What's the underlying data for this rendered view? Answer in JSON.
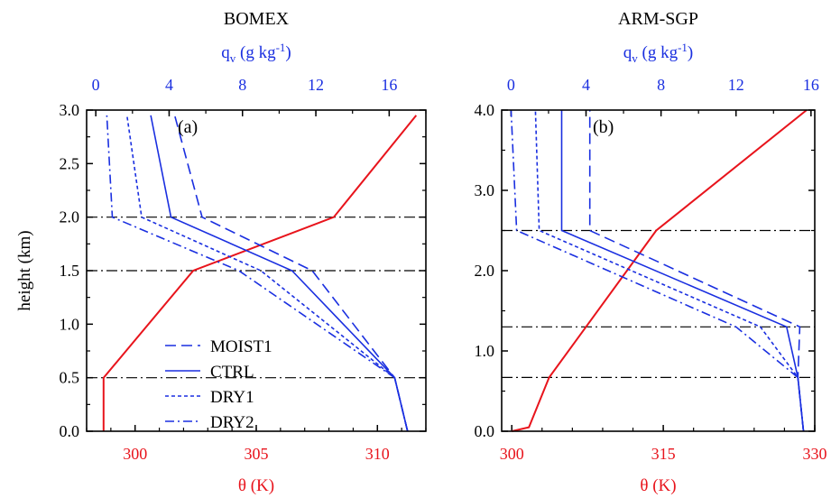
{
  "colors": {
    "theta": "#e8141c",
    "qv": "#1a2fe0",
    "axis": "#000000",
    "ref": "#000000"
  },
  "y_axis_label": "height (km)",
  "legend": [
    "MOIST1",
    "CTRL",
    "DRY1",
    "DRY2"
  ],
  "chart_data": [
    {
      "type": "line",
      "title": "BOMEX",
      "panel_label": "(a)",
      "ylabel": "height (km)",
      "ylim": [
        0,
        3.0
      ],
      "yticks": [
        "0.0",
        "0.5",
        "1.0",
        "1.5",
        "2.0",
        "2.5",
        "3.0"
      ],
      "bottom_axis": {
        "label": "θ (K)",
        "range": [
          298,
          312
        ],
        "ticks": [
          "300",
          "305",
          "310"
        ],
        "tick_values": [
          300,
          305,
          310
        ]
      },
      "top_axis": {
        "label": "q",
        "label_sub": "v",
        "label_tail": " (g kg",
        "label_sup": "-1",
        "label_end": ")",
        "range": [
          -0.5,
          18.0
        ],
        "ticks": [
          "0",
          "4",
          "8",
          "12",
          "16"
        ],
        "tick_values": [
          0,
          4,
          8,
          12,
          16
        ]
      },
      "reference_heights": [
        0.5,
        1.5,
        2.0
      ],
      "series": [
        {
          "name": "θ",
          "axis": "bottom",
          "points": [
            [
              298.7,
              0.0
            ],
            [
              298.7,
              0.5
            ],
            [
              302.4,
              1.5
            ],
            [
              308.2,
              2.0
            ],
            [
              311.6,
              2.95
            ]
          ]
        },
        {
          "name": "MOIST1",
          "axis": "top",
          "dash": "dashed",
          "points": [
            [
              17.0,
              0.0
            ],
            [
              16.3,
              0.5
            ],
            [
              11.8,
              1.5
            ],
            [
              5.8,
              2.0
            ],
            [
              4.3,
              2.95
            ]
          ]
        },
        {
          "name": "CTRL",
          "axis": "top",
          "dash": "solid",
          "points": [
            [
              17.0,
              0.0
            ],
            [
              16.3,
              0.5
            ],
            [
              10.7,
              1.5
            ],
            [
              4.1,
              2.0
            ],
            [
              3.0,
              2.95
            ]
          ]
        },
        {
          "name": "DRY1",
          "axis": "top",
          "dash": "dotted",
          "points": [
            [
              17.0,
              0.0
            ],
            [
              16.3,
              0.5
            ],
            [
              9.0,
              1.5
            ],
            [
              2.5,
              2.0
            ],
            [
              1.7,
              2.95
            ]
          ]
        },
        {
          "name": "DRY2",
          "axis": "top",
          "dash": "dashdot",
          "points": [
            [
              17.0,
              0.0
            ],
            [
              16.3,
              0.5
            ],
            [
              7.8,
              1.5
            ],
            [
              0.9,
              2.0
            ],
            [
              0.6,
              2.95
            ]
          ]
        }
      ]
    },
    {
      "type": "line",
      "title": "ARM-SGP",
      "panel_label": "(b)",
      "ylim": [
        0,
        4.0
      ],
      "yticks": [
        "0.0",
        "1.0",
        "2.0",
        "3.0",
        "4.0"
      ],
      "bottom_axis": {
        "label": "θ (K)",
        "range": [
          299,
          330
        ],
        "ticks": [
          "300",
          "315",
          "330"
        ],
        "tick_values": [
          300,
          315,
          330
        ]
      },
      "top_axis": {
        "label": "q",
        "label_sub": "v",
        "label_tail": " (g kg",
        "label_sup": "-1",
        "label_end": ")",
        "range": [
          -0.5,
          16.2
        ],
        "ticks": [
          "0",
          "4",
          "8",
          "12",
          "16"
        ],
        "tick_values": [
          0,
          4,
          8,
          12,
          16
        ]
      },
      "reference_heights": [
        0.67,
        1.3,
        2.5
      ],
      "series": [
        {
          "name": "θ",
          "axis": "bottom",
          "points": [
            [
              300.0,
              0.0
            ],
            [
              301.7,
              0.05
            ],
            [
              303.7,
              0.67
            ],
            [
              314.3,
              2.5
            ],
            [
              329.2,
              4.0
            ]
          ]
        },
        {
          "name": "MOIST1",
          "axis": "top",
          "dash": "dashed",
          "points": [
            [
              15.6,
              0.0
            ],
            [
              15.3,
              0.67
            ],
            [
              15.4,
              1.3
            ],
            [
              4.2,
              2.5
            ],
            [
              4.2,
              4.0
            ]
          ]
        },
        {
          "name": "CTRL",
          "axis": "top",
          "dash": "solid",
          "points": [
            [
              15.6,
              0.0
            ],
            [
              15.3,
              0.67
            ],
            [
              14.7,
              1.3
            ],
            [
              2.7,
              2.5
            ],
            [
              2.7,
              4.0
            ]
          ]
        },
        {
          "name": "DRY1",
          "axis": "top",
          "dash": "dotted",
          "points": [
            [
              15.6,
              0.0
            ],
            [
              15.3,
              0.67
            ],
            [
              13.3,
              1.3
            ],
            [
              1.5,
              2.5
            ],
            [
              1.3,
              4.0
            ]
          ]
        },
        {
          "name": "DRY2",
          "axis": "top",
          "dash": "dashdot",
          "points": [
            [
              15.6,
              0.0
            ],
            [
              15.3,
              0.67
            ],
            [
              12.0,
              1.3
            ],
            [
              0.3,
              2.5
            ],
            [
              0.0,
              4.0
            ]
          ]
        }
      ]
    }
  ]
}
